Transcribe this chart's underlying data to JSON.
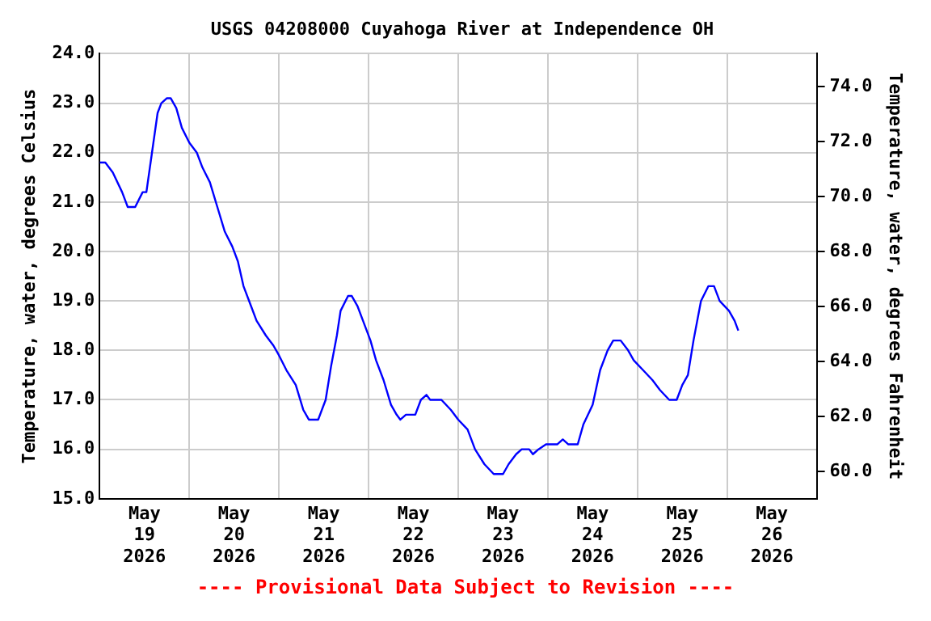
{
  "chart_data": {
    "type": "line",
    "title": "USGS 04208000 Cuyahoga River at Independence OH",
    "ylabel": "Temperature, water, degrees Celsius",
    "y2label": "Temperature, water, degrees Fahrenheit",
    "annotations": [
      "---- Provisional Data Subject to Revision ----"
    ],
    "x": [
      "2026-05-19T00:00",
      "2026-05-19T01:30",
      "2026-05-19T03:30",
      "2026-05-19T06:00",
      "2026-05-19T07:30",
      "2026-05-19T09:30",
      "2026-05-19T11:30",
      "2026-05-19T12:30",
      "2026-05-19T14:00",
      "2026-05-19T15:30",
      "2026-05-19T16:30",
      "2026-05-19T18:00",
      "2026-05-19T19:00",
      "2026-05-19T20:30",
      "2026-05-19T22:00",
      "2026-05-20T00:00",
      "2026-05-20T02:00",
      "2026-05-20T03:30",
      "2026-05-20T05:30",
      "2026-05-20T07:30",
      "2026-05-20T09:30",
      "2026-05-20T11:30",
      "2026-05-20T13:00",
      "2026-05-20T14:30",
      "2026-05-20T16:30",
      "2026-05-20T18:00",
      "2026-05-20T20:30",
      "2026-05-20T22:30",
      "2026-05-21T00:00",
      "2026-05-21T02:00",
      "2026-05-21T04:30",
      "2026-05-21T06:30",
      "2026-05-21T08:00",
      "2026-05-21T10:30",
      "2026-05-21T12:30",
      "2026-05-21T14:00",
      "2026-05-21T15:30",
      "2026-05-21T16:30",
      "2026-05-21T18:30",
      "2026-05-21T19:30",
      "2026-05-21T21:00",
      "2026-05-21T22:30",
      "2026-05-22T00:30",
      "2026-05-22T02:00",
      "2026-05-22T04:00",
      "2026-05-22T06:00",
      "2026-05-22T07:30",
      "2026-05-22T08:30",
      "2026-05-22T10:00",
      "2026-05-22T12:30",
      "2026-05-22T14:00",
      "2026-05-22T15:30",
      "2026-05-22T16:30",
      "2026-05-22T19:30",
      "2026-05-22T22:00",
      "2026-05-23T00:00",
      "2026-05-23T02:30",
      "2026-05-23T04:30",
      "2026-05-23T07:00",
      "2026-05-23T09:30",
      "2026-05-23T12:00",
      "2026-05-23T13:30",
      "2026-05-23T15:30",
      "2026-05-23T17:00",
      "2026-05-23T19:00",
      "2026-05-23T20:00",
      "2026-05-23T21:30",
      "2026-05-23T23:30",
      "2026-05-24T02:30",
      "2026-05-24T04:00",
      "2026-05-24T05:30",
      "2026-05-24T08:00",
      "2026-05-24T09:30",
      "2026-05-24T12:00",
      "2026-05-24T14:00",
      "2026-05-24T16:00",
      "2026-05-24T17:30",
      "2026-05-24T19:30",
      "2026-05-24T21:30",
      "2026-05-24T23:00",
      "2026-05-25T01:30",
      "2026-05-25T04:00",
      "2026-05-25T06:00",
      "2026-05-25T08:30",
      "2026-05-25T10:30",
      "2026-05-25T12:00",
      "2026-05-25T13:30",
      "2026-05-25T15:00",
      "2026-05-25T17:00",
      "2026-05-25T19:00",
      "2026-05-25T20:30",
      "2026-05-25T22:00",
      "2026-05-26T00:30",
      "2026-05-26T02:00",
      "2026-05-26T03:00"
    ],
    "series": [
      {
        "color": "#0000ff",
        "values": [
          21.8,
          21.8,
          21.6,
          21.2,
          20.9,
          20.9,
          21.2,
          21.2,
          22.0,
          22.8,
          23.0,
          23.1,
          23.1,
          22.9,
          22.5,
          22.2,
          22.0,
          21.7,
          21.4,
          20.9,
          20.4,
          20.1,
          19.8,
          19.3,
          18.9,
          18.6,
          18.3,
          18.1,
          17.9,
          17.6,
          17.3,
          16.8,
          16.6,
          16.6,
          17.0,
          17.7,
          18.3,
          18.8,
          19.1,
          19.1,
          18.9,
          18.6,
          18.2,
          17.8,
          17.4,
          16.9,
          16.7,
          16.6,
          16.7,
          16.7,
          17.0,
          17.1,
          17.0,
          17.0,
          16.8,
          16.6,
          16.4,
          16.0,
          15.7,
          15.5,
          15.5,
          15.7,
          15.9,
          16.0,
          16.0,
          15.9,
          16.0,
          16.1,
          16.1,
          16.2,
          16.1,
          16.1,
          16.5,
          16.9,
          17.6,
          18.0,
          18.2,
          18.2,
          18.0,
          17.8,
          17.6,
          17.4,
          17.2,
          17.0,
          17.0,
          17.3,
          17.5,
          18.2,
          19.0,
          19.3,
          19.3,
          19.0,
          18.8,
          18.6,
          18.4
        ]
      }
    ],
    "xlim": [
      "2026-05-19T00:00",
      "2026-05-27T00:00"
    ],
    "xticks": [
      {
        "value": "2026-05-19T00:00",
        "label": null
      },
      {
        "value": "2026-05-19T12:00",
        "label": "May\n19\n2026"
      },
      {
        "value": "2026-05-20T00:00",
        "label": null
      },
      {
        "value": "2026-05-20T12:00",
        "label": "May\n20\n2026"
      },
      {
        "value": "2026-05-21T00:00",
        "label": null
      },
      {
        "value": "2026-05-21T12:00",
        "label": "May\n21\n2026"
      },
      {
        "value": "2026-05-22T00:00",
        "label": null
      },
      {
        "value": "2026-05-22T12:00",
        "label": "May\n22\n2026"
      },
      {
        "value": "2026-05-23T00:00",
        "label": null
      },
      {
        "value": "2026-05-23T12:00",
        "label": "May\n23\n2026"
      },
      {
        "value": "2026-05-24T00:00",
        "label": null
      },
      {
        "value": "2026-05-24T12:00",
        "label": "May\n24\n2026"
      },
      {
        "value": "2026-05-25T00:00",
        "label": null
      },
      {
        "value": "2026-05-25T12:00",
        "label": "May\n25\n2026"
      },
      {
        "value": "2026-05-26T00:00",
        "label": null
      },
      {
        "value": "2026-05-26T12:00",
        "label": "May\n26\n2026"
      },
      {
        "value": "2026-05-27T00:00",
        "label": null
      }
    ],
    "ylim": [
      15,
      24
    ],
    "yticks": [
      {
        "value": 15,
        "label": "15.0"
      },
      {
        "value": 16,
        "label": "16.0"
      },
      {
        "value": 17,
        "label": "17.0"
      },
      {
        "value": 18,
        "label": "18.0"
      },
      {
        "value": 19,
        "label": "19.0"
      },
      {
        "value": 20,
        "label": "20.0"
      },
      {
        "value": 21,
        "label": "21.0"
      },
      {
        "value": 22,
        "label": "22.0"
      },
      {
        "value": 23,
        "label": "23.0"
      },
      {
        "value": 24,
        "label": "24.0"
      }
    ],
    "y2lim": [
      59,
      75.2
    ],
    "y2ticks": [
      {
        "value": 60,
        "label": "60.0"
      },
      {
        "value": 62,
        "label": "62.0"
      },
      {
        "value": 64,
        "label": "64.0"
      },
      {
        "value": 66,
        "label": "66.0"
      },
      {
        "value": 68,
        "label": "68.0"
      },
      {
        "value": 70,
        "label": "70.0"
      },
      {
        "value": 72,
        "label": "72.0"
      },
      {
        "value": 74,
        "label": "74.0"
      }
    ],
    "grid": true,
    "legend": false,
    "marker": "none",
    "line_style": "solid"
  }
}
